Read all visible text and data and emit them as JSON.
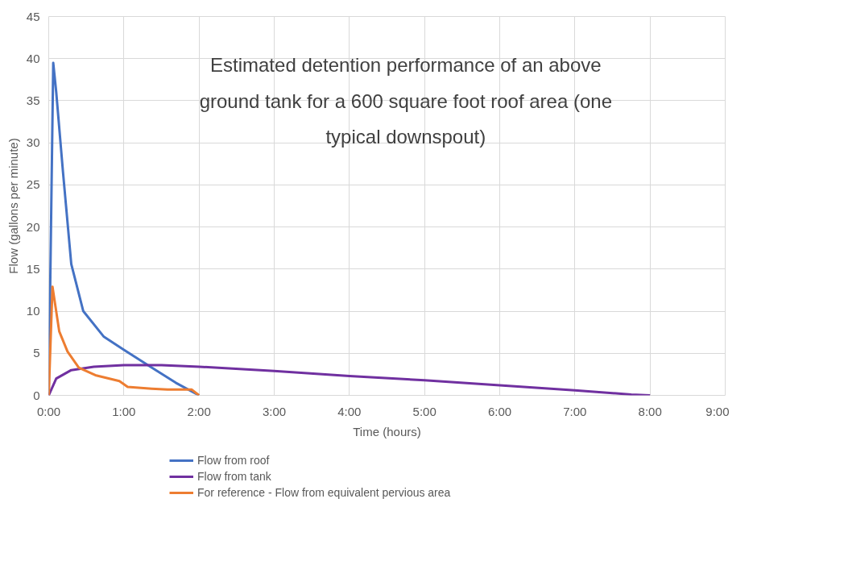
{
  "chart_data": {
    "type": "line",
    "title": "Estimated detention performance of an above ground tank for a 600 square foot roof area (one typical downspout)",
    "xlabel": "Time (hours)",
    "ylabel": "Flow (gallons per minute)",
    "series": [
      {
        "name": "Flow from roof",
        "color": "#4472c4",
        "x": [
          0,
          0.06,
          0.1,
          0.19,
          0.3,
          0.46,
          0.73,
          1.0,
          1.37,
          1.69,
          2.0
        ],
        "values": [
          0,
          39.5,
          36,
          26.5,
          15.6,
          10,
          7,
          5.4,
          3.3,
          1.5,
          0
        ]
      },
      {
        "name": "Flow from tank",
        "color": "#7030a0",
        "x": [
          0,
          0.1,
          0.3,
          0.6,
          1.0,
          1.5,
          2.0,
          3.0,
          4.0,
          5.0,
          6.0,
          7.0,
          7.75,
          8.0
        ],
        "values": [
          0,
          2.0,
          3.0,
          3.4,
          3.6,
          3.6,
          3.4,
          2.9,
          2.3,
          1.8,
          1.2,
          0.6,
          0.1,
          0
        ]
      },
      {
        "name": "For reference - Flow from equivalent pervious area",
        "color": "#ed7d31",
        "x": [
          0,
          0.05,
          0.14,
          0.25,
          0.4,
          0.62,
          0.94,
          1.05,
          1.37,
          1.58,
          1.9,
          2.0
        ],
        "values": [
          0,
          12.9,
          7.6,
          5.2,
          3.3,
          2.4,
          1.7,
          1.0,
          0.8,
          0.7,
          0.7,
          0
        ]
      }
    ],
    "xlim": [
      0,
      9
    ],
    "xticks": [
      {
        "value": 0,
        "label": "0:00"
      },
      {
        "value": 1,
        "label": "1:00"
      },
      {
        "value": 2,
        "label": "2:00"
      },
      {
        "value": 3,
        "label": "3:00"
      },
      {
        "value": 4,
        "label": "4:00"
      },
      {
        "value": 5,
        "label": "5:00"
      },
      {
        "value": 6,
        "label": "6:00"
      },
      {
        "value": 7,
        "label": "7:00"
      },
      {
        "value": 8,
        "label": "8:00"
      },
      {
        "value": 9,
        "label": "9:00"
      }
    ],
    "ylim": [
      0,
      45
    ],
    "yticks": [
      0,
      5,
      10,
      15,
      20,
      25,
      30,
      35,
      40,
      45
    ],
    "grid": true,
    "legend": "bottom",
    "marker": "none",
    "line_style": "solid"
  }
}
